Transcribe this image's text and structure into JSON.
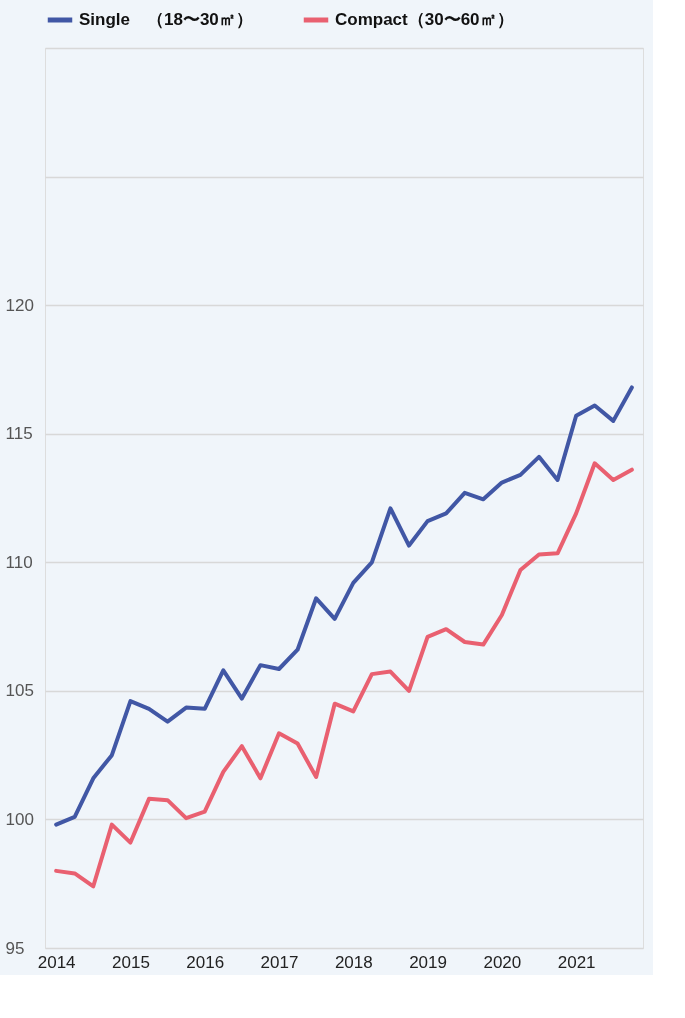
{
  "chart_data": {
    "type": "line",
    "x": [
      2014,
      2014.25,
      2014.5,
      2014.75,
      2015,
      2015.25,
      2015.5,
      2015.75,
      2016,
      2016.25,
      2016.5,
      2016.75,
      2017,
      2017.25,
      2017.5,
      2017.75,
      2018,
      2018.25,
      2018.5,
      2018.75,
      2019,
      2019.25,
      2019.5,
      2019.75,
      2020,
      2020.25,
      2020.5,
      2020.75,
      2021,
      2021.25,
      2021.5,
      2021.75
    ],
    "series": [
      {
        "name": "Single　（18〜30㎡）",
        "color": "#4157a5",
        "values": [
          99.8,
          100.1,
          101.6,
          102.5,
          104.6,
          104.3,
          103.8,
          104.35,
          104.3,
          105.8,
          104.7,
          106.0,
          105.85,
          106.6,
          108.6,
          107.8,
          109.2,
          110.0,
          112.1,
          110.65,
          111.6,
          111.9,
          112.7,
          112.45,
          113.1,
          113.4,
          114.1,
          113.2,
          115.7,
          116.1,
          115.5,
          116.8
        ]
      },
      {
        "name": "Compact（30〜60㎡）",
        "color": "#e96070",
        "values": [
          98.0,
          97.9,
          97.4,
          99.8,
          99.1,
          100.8,
          100.75,
          100.05,
          100.3,
          101.85,
          102.85,
          101.6,
          103.35,
          102.95,
          101.65,
          104.5,
          104.2,
          105.65,
          105.75,
          105.0,
          107.1,
          107.4,
          106.9,
          106.8,
          107.95,
          109.7,
          110.3,
          110.35,
          111.9,
          113.85,
          113.2,
          113.6
        ]
      }
    ],
    "xlim": [
      2013.85,
      2021.9
    ],
    "xticks": [
      2014,
      2015,
      2016,
      2017,
      2018,
      2019,
      2020,
      2021
    ],
    "ylim": [
      95,
      130
    ],
    "yticks": [
      95,
      100,
      105,
      110,
      115,
      120,
      {
        "value": 125,
        "label": null
      },
      {
        "value": 130,
        "label": null
      }
    ],
    "grid": "y",
    "legend": "top",
    "marker": "none",
    "line_style": "solid"
  }
}
